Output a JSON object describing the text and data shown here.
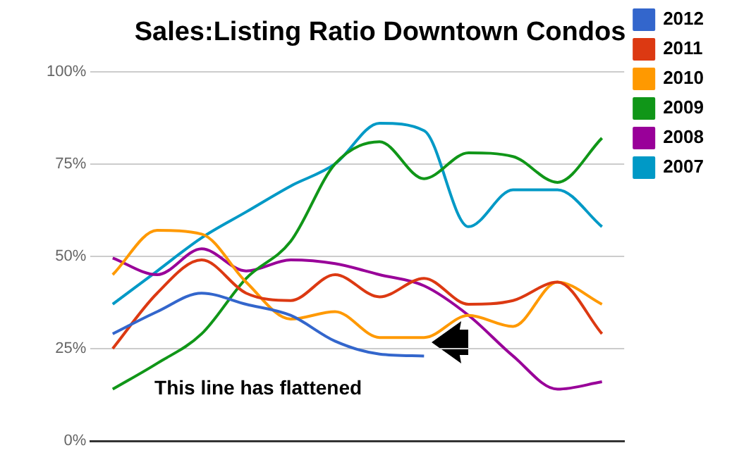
{
  "chart_data": {
    "type": "line",
    "title": "Sales:Listing Ratio Downtown Condos",
    "categories": [
      null,
      null,
      null,
      null,
      null,
      null,
      null,
      null,
      null,
      null,
      null,
      null
    ],
    "series": [
      {
        "name": "2012",
        "color": "#3366cc",
        "values": [
          29,
          35,
          40,
          37,
          34,
          27,
          23.5,
          23,
          null,
          null,
          null,
          null
        ]
      },
      {
        "name": "2011",
        "color": "#dc3912",
        "values": [
          25,
          40,
          49,
          40,
          38,
          45,
          39,
          44,
          37,
          38,
          43,
          29
        ]
      },
      {
        "name": "2010",
        "color": "#ff9900",
        "values": [
          45,
          57,
          56,
          43,
          33,
          35,
          28,
          28,
          34,
          31,
          43,
          37
        ]
      },
      {
        "name": "2009",
        "color": "#109618",
        "values": [
          14,
          21,
          29,
          44,
          54,
          75,
          81,
          71,
          78,
          77,
          70,
          82
        ]
      },
      {
        "name": "2008",
        "color": "#990099",
        "values": [
          49.5,
          45,
          52,
          46,
          49,
          48,
          45,
          42,
          34,
          23,
          14,
          16
        ]
      },
      {
        "name": "2007",
        "color": "#0099c6",
        "values": [
          37,
          46,
          55,
          62,
          69,
          75,
          86,
          84,
          58,
          68,
          68,
          58
        ]
      }
    ],
    "ylim": [
      0,
      100
    ],
    "yticks": [
      {
        "value": 0,
        "label": "0%"
      },
      {
        "value": 25,
        "label": "25%"
      },
      {
        "value": 50,
        "label": "50%"
      },
      {
        "value": 75,
        "label": "75%"
      },
      {
        "value": 100,
        "label": "100%"
      }
    ],
    "grid": "y",
    "legend": "top right",
    "tick_labels": "y",
    "marker": "none",
    "line_style": "solid",
    "annotations": [
      "This line has flattened"
    ]
  }
}
